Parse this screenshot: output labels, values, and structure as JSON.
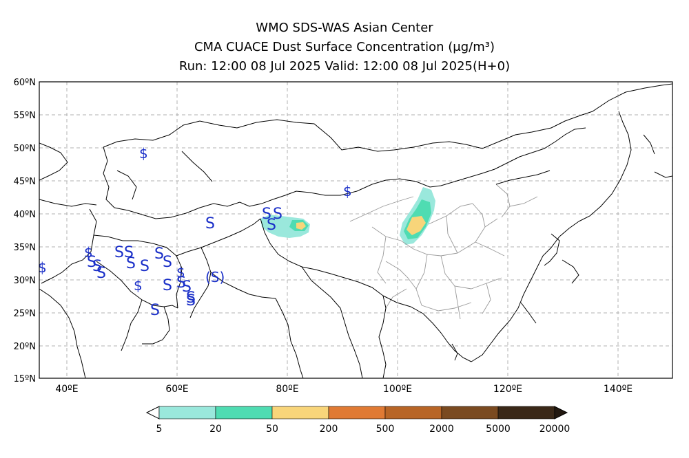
{
  "header": {
    "line1": "WMO SDS-WAS Asian Center",
    "line2": "CMA CUACE Dust Surface Concentration (μg/m³)",
    "line3": "Run: 12:00 08 Jul 2025     Valid: 12:00 08 Jul 2025(H+0)"
  },
  "map": {
    "lat_labels": [
      "60ºN",
      "55ºN",
      "50ºN",
      "45ºN",
      "40ºN",
      "35ºN",
      "30ºN",
      "25ºN",
      "20ºN",
      "15ºN"
    ],
    "lon_labels": [
      "40ºE",
      "60ºE",
      "80ºE",
      "100ºE",
      "120ºE",
      "140ºE"
    ],
    "extent": {
      "lon": [
        35,
        150
      ],
      "lat": [
        15,
        60
      ]
    },
    "gridlines": true,
    "symbols": {
      "dollar": "$",
      "ess": "S",
      "paren": "(S)"
    }
  },
  "legend": {
    "ticks": [
      "5",
      "20",
      "50",
      "200",
      "500",
      "2000",
      "5000",
      "20000"
    ],
    "colors": [
      "#9ae8dc",
      "#4fdcb2",
      "#f8d57a",
      "#e07a34",
      "#b86526",
      "#7a4a20",
      "#3a2818"
    ],
    "under_color": "#ffffff",
    "over_color": "#221810"
  },
  "colors": {
    "coast": "#000000",
    "province": "#999999",
    "grid": "#b0b0b0",
    "symbol": "#1a2fc8",
    "dust_low": "#9ae8dc",
    "dust_mid": "#4fdcb2",
    "dust_high": "#f8d57a"
  }
}
